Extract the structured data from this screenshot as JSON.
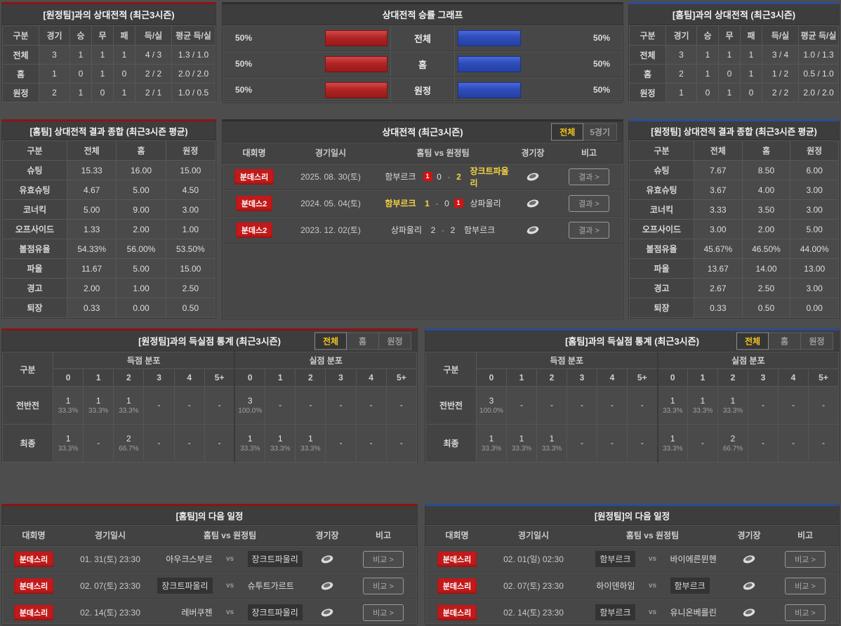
{
  "chart_data": {
    "type": "bar",
    "title": "상대전적 승률 그래프",
    "categories": [
      "전체",
      "홈",
      "원정"
    ],
    "series": [
      {
        "name": "red-left-bar",
        "color": "#b22424",
        "values": [
          50,
          50,
          50
        ]
      },
      {
        "name": "blue-right-bar",
        "color": "#2d4cba",
        "values": [
          50,
          50,
          50
        ]
      }
    ],
    "xlim": [
      0,
      100
    ],
    "value_labels": [
      "50%",
      "50%",
      "50%"
    ],
    "legend": "none",
    "grid": "off"
  },
  "ui": {
    "vs": "vs",
    "score_sep": "-",
    "result_btn": "결과 >",
    "compare_btn": "비교 >",
    "tab_all": "전체",
    "tab_five": "5경기",
    "tab_home": "홈",
    "tab_away": "원정"
  },
  "list_headers": {
    "league": "대회명",
    "date": "경기일시",
    "teams": "홈팀  vs  원정팀",
    "venue": "경기장",
    "note": "비고"
  },
  "away_h2h": {
    "title": "[원정팀]과의 상대전적 (최근3시즌)",
    "headers": [
      "구분",
      "경기",
      "승",
      "무",
      "패",
      "득/실",
      "평균 득/실"
    ],
    "rows": [
      {
        "label": "전체",
        "v": [
          "3",
          "1",
          "1",
          "1",
          "4 / 3",
          "1.3 / 1.0"
        ]
      },
      {
        "label": "홈",
        "v": [
          "1",
          "0",
          "1",
          "0",
          "2 / 2",
          "2.0 / 2.0"
        ]
      },
      {
        "label": "원정",
        "v": [
          "2",
          "1",
          "0",
          "1",
          "2 / 1",
          "1.0 / 0.5"
        ]
      }
    ]
  },
  "winrate": {
    "title": "상대전적 승률 그래프",
    "rows": [
      {
        "label": "전체",
        "left_pct": "50%",
        "left_val": 50,
        "right_val": 50,
        "right_pct": "50%"
      },
      {
        "label": "홈",
        "left_pct": "50%",
        "left_val": 50,
        "right_val": 50,
        "right_pct": "50%"
      },
      {
        "label": "원정",
        "left_pct": "50%",
        "left_val": 50,
        "right_val": 50,
        "right_pct": "50%"
      }
    ]
  },
  "home_h2h": {
    "title": "[홈팀]과의 상대전적 (최근3시즌)",
    "headers": [
      "구분",
      "경기",
      "승",
      "무",
      "패",
      "득/실",
      "평균 득/실"
    ],
    "rows": [
      {
        "label": "전체",
        "v": [
          "3",
          "1",
          "1",
          "1",
          "3 / 4",
          "1.0 / 1.3"
        ]
      },
      {
        "label": "홈",
        "v": [
          "2",
          "1",
          "0",
          "1",
          "1 / 2",
          "0.5 / 1.0"
        ]
      },
      {
        "label": "원정",
        "v": [
          "1",
          "0",
          "1",
          "0",
          "2 / 2",
          "2.0 / 2.0"
        ]
      }
    ]
  },
  "home_summary": {
    "title": "[홈팀] 상대전적 결과 종합 (최근3시즌 평균)",
    "headers": [
      "구분",
      "전체",
      "홈",
      "원정"
    ],
    "rows": [
      {
        "label": "슈팅",
        "v": [
          "15.33",
          "16.00",
          "15.00"
        ]
      },
      {
        "label": "유효슈팅",
        "v": [
          "4.67",
          "5.00",
          "4.50"
        ]
      },
      {
        "label": "코너킥",
        "v": [
          "5.00",
          "9.00",
          "3.00"
        ]
      },
      {
        "label": "오프사이드",
        "v": [
          "1.33",
          "2.00",
          "1.00"
        ]
      },
      {
        "label": "볼점유율",
        "v": [
          "54.33%",
          "56.00%",
          "53.50%"
        ]
      },
      {
        "label": "파울",
        "v": [
          "11.67",
          "5.00",
          "15.00"
        ]
      },
      {
        "label": "경고",
        "v": [
          "2.00",
          "1.00",
          "2.50"
        ]
      },
      {
        "label": "퇴장",
        "v": [
          "0.33",
          "0.00",
          "0.50"
        ]
      }
    ]
  },
  "matches": {
    "title": "상대전적 (최근3시즌)",
    "rows": [
      {
        "league": "분데스리",
        "date": "2025. 08. 30(토)",
        "home": "함부르크",
        "home_card": "1",
        "home_score": "0",
        "away_score": "2",
        "away_card": "",
        "away": "장크트파울리"
      },
      {
        "league": "분데스2",
        "date": "2024. 05. 04(토)",
        "home": "함부르크",
        "home_card": "",
        "home_score": "1",
        "away_score": "0",
        "away_card": "1",
        "away": "상파울리"
      },
      {
        "league": "분데스2",
        "date": "2023. 12. 02(토)",
        "home": "상파울리",
        "home_card": "",
        "home_score": "2",
        "away_score": "2",
        "away_card": "",
        "away": "함부르크"
      }
    ]
  },
  "away_summary": {
    "title": "[원정팀] 상대전적 결과 종합 (최근3시즌 평균)",
    "headers": [
      "구분",
      "전체",
      "홈",
      "원정"
    ],
    "rows": [
      {
        "label": "슈팅",
        "v": [
          "7.67",
          "8.50",
          "6.00"
        ]
      },
      {
        "label": "유효슈팅",
        "v": [
          "3.67",
          "4.00",
          "3.00"
        ]
      },
      {
        "label": "코너킥",
        "v": [
          "3.33",
          "3.50",
          "3.00"
        ]
      },
      {
        "label": "오프사이드",
        "v": [
          "3.00",
          "2.00",
          "5.00"
        ]
      },
      {
        "label": "볼점유율",
        "v": [
          "45.67%",
          "46.50%",
          "44.00%"
        ]
      },
      {
        "label": "파울",
        "v": [
          "13.67",
          "14.00",
          "13.00"
        ]
      },
      {
        "label": "경고",
        "v": [
          "2.67",
          "2.50",
          "3.00"
        ]
      },
      {
        "label": "퇴장",
        "v": [
          "0.33",
          "0.50",
          "0.00"
        ]
      }
    ]
  },
  "away_goal_stats": {
    "title": "[원정팀]과의 득실점 통계 (최근3시즌)",
    "col_label": "구분",
    "group1": "득점 분포",
    "group2": "실점 분포",
    "cols": [
      "0",
      "1",
      "2",
      "3",
      "4",
      "5+"
    ],
    "rows": [
      {
        "label": "전반전",
        "scored": [
          {
            "n": "1",
            "p": "33.3%"
          },
          {
            "n": "1",
            "p": "33.3%"
          },
          {
            "n": "1",
            "p": "33.3%"
          },
          {
            "n": "-",
            "p": ""
          },
          {
            "n": "-",
            "p": ""
          },
          {
            "n": "-",
            "p": ""
          }
        ],
        "conceded": [
          {
            "n": "3",
            "p": "100.0%"
          },
          {
            "n": "-",
            "p": ""
          },
          {
            "n": "-",
            "p": ""
          },
          {
            "n": "-",
            "p": ""
          },
          {
            "n": "-",
            "p": ""
          },
          {
            "n": "-",
            "p": ""
          }
        ]
      },
      {
        "label": "최종",
        "scored": [
          {
            "n": "1",
            "p": "33.3%"
          },
          {
            "n": "-",
            "p": ""
          },
          {
            "n": "2",
            "p": "66.7%"
          },
          {
            "n": "-",
            "p": ""
          },
          {
            "n": "-",
            "p": ""
          },
          {
            "n": "-",
            "p": ""
          }
        ],
        "conceded": [
          {
            "n": "1",
            "p": "33.3%"
          },
          {
            "n": "1",
            "p": "33.3%"
          },
          {
            "n": "1",
            "p": "33.3%"
          },
          {
            "n": "-",
            "p": ""
          },
          {
            "n": "-",
            "p": ""
          },
          {
            "n": "-",
            "p": ""
          }
        ]
      }
    ]
  },
  "home_goal_stats": {
    "title": "[홈팀]과의 득실점 통계 (최근3시즌)",
    "col_label": "구분",
    "group1": "득점 분포",
    "group2": "실점 분포",
    "cols": [
      "0",
      "1",
      "2",
      "3",
      "4",
      "5+"
    ],
    "rows": [
      {
        "label": "전반전",
        "scored": [
          {
            "n": "3",
            "p": "100.0%"
          },
          {
            "n": "-",
            "p": ""
          },
          {
            "n": "-",
            "p": ""
          },
          {
            "n": "-",
            "p": ""
          },
          {
            "n": "-",
            "p": ""
          },
          {
            "n": "-",
            "p": ""
          }
        ],
        "conceded": [
          {
            "n": "1",
            "p": "33.3%"
          },
          {
            "n": "1",
            "p": "33.3%"
          },
          {
            "n": "1",
            "p": "33.3%"
          },
          {
            "n": "-",
            "p": ""
          },
          {
            "n": "-",
            "p": ""
          },
          {
            "n": "-",
            "p": ""
          }
        ]
      },
      {
        "label": "최종",
        "scored": [
          {
            "n": "1",
            "p": "33.3%"
          },
          {
            "n": "1",
            "p": "33.3%"
          },
          {
            "n": "1",
            "p": "33.3%"
          },
          {
            "n": "-",
            "p": ""
          },
          {
            "n": "-",
            "p": ""
          },
          {
            "n": "-",
            "p": ""
          }
        ],
        "conceded": [
          {
            "n": "1",
            "p": "33.3%"
          },
          {
            "n": "-",
            "p": ""
          },
          {
            "n": "2",
            "p": "66.7%"
          },
          {
            "n": "-",
            "p": ""
          },
          {
            "n": "-",
            "p": ""
          },
          {
            "n": "-",
            "p": ""
          }
        ]
      }
    ]
  },
  "home_schedule": {
    "title": "[홈팀]의 다음 일정",
    "rows": [
      {
        "league": "분데스리",
        "date": "01. 31(토) 23:30",
        "home": "아우크스부르",
        "away": "장크트파울리"
      },
      {
        "league": "분데스리",
        "date": "02. 07(토) 23:30",
        "home": "장크트파울리",
        "away": "슈투트가르트"
      },
      {
        "league": "분데스리",
        "date": "02. 14(토) 23:30",
        "home": "레버쿠젠",
        "away": "장크트파울리"
      }
    ]
  },
  "away_schedule": {
    "title": "[원정팀]의 다음 일정",
    "rows": [
      {
        "league": "분데스리",
        "date": "02. 01(일) 02:30",
        "home": "함부르크",
        "away": "바이에른뮌헨"
      },
      {
        "league": "분데스리",
        "date": "02. 07(토) 23:30",
        "home": "하이덴하임",
        "away": "함부르크"
      },
      {
        "league": "분데스리",
        "date": "02. 14(토) 23:30",
        "home": "함부르크",
        "away": "유니온베를린"
      }
    ]
  }
}
